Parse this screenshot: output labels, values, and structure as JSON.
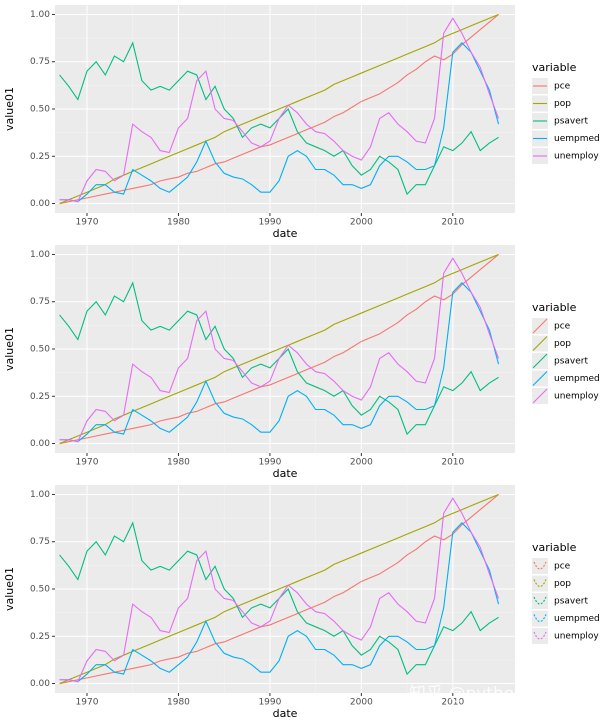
{
  "chart_data": [
    {
      "type": "line",
      "x_label": "date",
      "y_label": "value01",
      "legend_title": "variable",
      "legend_key": "line",
      "grid": true,
      "legend_position": "right",
      "xlim": [
        1966.5,
        2016.8
      ],
      "ylim": [
        -0.05,
        1.05
      ],
      "xticks": [
        1970,
        1980,
        1990,
        2000,
        2010
      ],
      "yticks": [
        {
          "value": 0,
          "label": "0.00"
        },
        {
          "value": 0.25,
          "label": "0.25"
        },
        {
          "value": 0.5,
          "label": "0.50"
        },
        {
          "value": 0.75,
          "label": "0.75"
        },
        {
          "value": 1,
          "label": "1.00"
        }
      ],
      "x": [
        1967,
        1968,
        1969,
        1970,
        1971,
        1972,
        1973,
        1974,
        1975,
        1976,
        1977,
        1978,
        1979,
        1980,
        1981,
        1982,
        1983,
        1984,
        1985,
        1986,
        1987,
        1988,
        1989,
        1990,
        1991,
        1992,
        1993,
        1994,
        1995,
        1996,
        1997,
        1998,
        1999,
        2000,
        2001,
        2002,
        2003,
        2004,
        2005,
        2006,
        2007,
        2008,
        2009,
        2010,
        2011,
        2012,
        2013,
        2014,
        2015
      ],
      "series": [
        {
          "name": "pce",
          "color": "#F8766D",
          "values": [
            0,
            0.01,
            0.02,
            0.03,
            0.04,
            0.05,
            0.06,
            0.07,
            0.08,
            0.09,
            0.1,
            0.12,
            0.13,
            0.14,
            0.16,
            0.17,
            0.19,
            0.21,
            0.22,
            0.24,
            0.26,
            0.28,
            0.3,
            0.31,
            0.33,
            0.35,
            0.37,
            0.39,
            0.41,
            0.43,
            0.46,
            0.48,
            0.51,
            0.54,
            0.56,
            0.58,
            0.61,
            0.64,
            0.68,
            0.71,
            0.75,
            0.78,
            0.76,
            0.79,
            0.84,
            0.88,
            0.92,
            0.96,
            1.0
          ]
        },
        {
          "name": "pop",
          "color": "#A3A500",
          "values": [
            0,
            0.02,
            0.04,
            0.06,
            0.08,
            0.1,
            0.13,
            0.15,
            0.17,
            0.19,
            0.21,
            0.23,
            0.25,
            0.27,
            0.29,
            0.31,
            0.33,
            0.35,
            0.38,
            0.4,
            0.42,
            0.44,
            0.46,
            0.48,
            0.5,
            0.52,
            0.54,
            0.56,
            0.58,
            0.6,
            0.63,
            0.65,
            0.67,
            0.69,
            0.71,
            0.73,
            0.75,
            0.77,
            0.79,
            0.81,
            0.83,
            0.85,
            0.88,
            0.9,
            0.92,
            0.94,
            0.96,
            0.98,
            1.0
          ]
        },
        {
          "name": "psavert",
          "color": "#00BF7D",
          "values": [
            0.68,
            0.62,
            0.55,
            0.7,
            0.75,
            0.68,
            0.78,
            0.75,
            0.85,
            0.65,
            0.6,
            0.62,
            0.6,
            0.65,
            0.7,
            0.68,
            0.55,
            0.62,
            0.5,
            0.45,
            0.35,
            0.4,
            0.42,
            0.4,
            0.45,
            0.5,
            0.38,
            0.32,
            0.3,
            0.28,
            0.25,
            0.28,
            0.2,
            0.15,
            0.18,
            0.25,
            0.22,
            0.18,
            0.05,
            0.1,
            0.1,
            0.2,
            0.3,
            0.28,
            0.32,
            0.38,
            0.28,
            0.32,
            0.35
          ]
        },
        {
          "name": "uempmed",
          "color": "#00B0F6",
          "values": [
            0.02,
            0.02,
            0.01,
            0.05,
            0.1,
            0.1,
            0.06,
            0.05,
            0.18,
            0.15,
            0.12,
            0.08,
            0.06,
            0.1,
            0.14,
            0.22,
            0.33,
            0.22,
            0.16,
            0.14,
            0.13,
            0.1,
            0.06,
            0.06,
            0.12,
            0.25,
            0.28,
            0.25,
            0.18,
            0.18,
            0.15,
            0.1,
            0.1,
            0.08,
            0.1,
            0.2,
            0.25,
            0.25,
            0.22,
            0.18,
            0.18,
            0.2,
            0.4,
            0.8,
            0.85,
            0.8,
            0.7,
            0.6,
            0.42
          ]
        },
        {
          "name": "unemploy",
          "color": "#E76BF3",
          "values": [
            0.02,
            0.02,
            0.01,
            0.12,
            0.18,
            0.17,
            0.12,
            0.15,
            0.42,
            0.38,
            0.35,
            0.28,
            0.27,
            0.4,
            0.45,
            0.65,
            0.7,
            0.5,
            0.45,
            0.44,
            0.38,
            0.32,
            0.3,
            0.33,
            0.45,
            0.52,
            0.48,
            0.42,
            0.38,
            0.37,
            0.33,
            0.28,
            0.25,
            0.23,
            0.3,
            0.45,
            0.48,
            0.42,
            0.38,
            0.33,
            0.32,
            0.45,
            0.9,
            0.98,
            0.9,
            0.8,
            0.72,
            0.58,
            0.45
          ]
        }
      ]
    },
    {
      "type": "line",
      "x_label": "date",
      "y_label": "value01",
      "legend_title": "variable",
      "legend_key": "diagonal",
      "grid": true,
      "legend_position": "right",
      "xlim": [
        1966.5,
        2016.8
      ],
      "ylim": [
        -0.05,
        1.05
      ],
      "xticks": [
        1970,
        1980,
        1990,
        2000,
        2010
      ],
      "yticks": [
        {
          "value": 0,
          "label": "0.00"
        },
        {
          "value": 0.25,
          "label": "0.25"
        },
        {
          "value": 0.5,
          "label": "0.50"
        },
        {
          "value": 0.75,
          "label": "0.75"
        },
        {
          "value": 1,
          "label": "1.00"
        }
      ],
      "x": [
        1967,
        1968,
        1969,
        1970,
        1971,
        1972,
        1973,
        1974,
        1975,
        1976,
        1977,
        1978,
        1979,
        1980,
        1981,
        1982,
        1983,
        1984,
        1985,
        1986,
        1987,
        1988,
        1989,
        1990,
        1991,
        1992,
        1993,
        1994,
        1995,
        1996,
        1997,
        1998,
        1999,
        2000,
        2001,
        2002,
        2003,
        2004,
        2005,
        2006,
        2007,
        2008,
        2009,
        2010,
        2011,
        2012,
        2013,
        2014,
        2015
      ],
      "series": [
        {
          "name": "pce",
          "color": "#F8766D",
          "values": [
            0,
            0.01,
            0.02,
            0.03,
            0.04,
            0.05,
            0.06,
            0.07,
            0.08,
            0.09,
            0.1,
            0.12,
            0.13,
            0.14,
            0.16,
            0.17,
            0.19,
            0.21,
            0.22,
            0.24,
            0.26,
            0.28,
            0.3,
            0.31,
            0.33,
            0.35,
            0.37,
            0.39,
            0.41,
            0.43,
            0.46,
            0.48,
            0.51,
            0.54,
            0.56,
            0.58,
            0.61,
            0.64,
            0.68,
            0.71,
            0.75,
            0.78,
            0.76,
            0.79,
            0.84,
            0.88,
            0.92,
            0.96,
            1.0
          ]
        },
        {
          "name": "pop",
          "color": "#A3A500",
          "values": [
            0,
            0.02,
            0.04,
            0.06,
            0.08,
            0.1,
            0.13,
            0.15,
            0.17,
            0.19,
            0.21,
            0.23,
            0.25,
            0.27,
            0.29,
            0.31,
            0.33,
            0.35,
            0.38,
            0.4,
            0.42,
            0.44,
            0.46,
            0.48,
            0.5,
            0.52,
            0.54,
            0.56,
            0.58,
            0.6,
            0.63,
            0.65,
            0.67,
            0.69,
            0.71,
            0.73,
            0.75,
            0.77,
            0.79,
            0.81,
            0.83,
            0.85,
            0.88,
            0.9,
            0.92,
            0.94,
            0.96,
            0.98,
            1.0
          ]
        },
        {
          "name": "psavert",
          "color": "#00BF7D",
          "values": [
            0.68,
            0.62,
            0.55,
            0.7,
            0.75,
            0.68,
            0.78,
            0.75,
            0.85,
            0.65,
            0.6,
            0.62,
            0.6,
            0.65,
            0.7,
            0.68,
            0.55,
            0.62,
            0.5,
            0.45,
            0.35,
            0.4,
            0.42,
            0.4,
            0.45,
            0.5,
            0.38,
            0.32,
            0.3,
            0.28,
            0.25,
            0.28,
            0.2,
            0.15,
            0.18,
            0.25,
            0.22,
            0.18,
            0.05,
            0.1,
            0.1,
            0.2,
            0.3,
            0.28,
            0.32,
            0.38,
            0.28,
            0.32,
            0.35
          ]
        },
        {
          "name": "uempmed",
          "color": "#00B0F6",
          "values": [
            0.02,
            0.02,
            0.01,
            0.05,
            0.1,
            0.1,
            0.06,
            0.05,
            0.18,
            0.15,
            0.12,
            0.08,
            0.06,
            0.1,
            0.14,
            0.22,
            0.33,
            0.22,
            0.16,
            0.14,
            0.13,
            0.1,
            0.06,
            0.06,
            0.12,
            0.25,
            0.28,
            0.25,
            0.18,
            0.18,
            0.15,
            0.1,
            0.1,
            0.08,
            0.1,
            0.2,
            0.25,
            0.25,
            0.22,
            0.18,
            0.18,
            0.2,
            0.4,
            0.8,
            0.85,
            0.8,
            0.7,
            0.6,
            0.42
          ]
        },
        {
          "name": "unemploy",
          "color": "#E76BF3",
          "values": [
            0.02,
            0.02,
            0.01,
            0.12,
            0.18,
            0.17,
            0.12,
            0.15,
            0.42,
            0.38,
            0.35,
            0.28,
            0.27,
            0.4,
            0.45,
            0.65,
            0.7,
            0.5,
            0.45,
            0.44,
            0.38,
            0.32,
            0.3,
            0.33,
            0.45,
            0.52,
            0.48,
            0.42,
            0.38,
            0.37,
            0.33,
            0.28,
            0.25,
            0.23,
            0.3,
            0.45,
            0.48,
            0.42,
            0.38,
            0.33,
            0.32,
            0.45,
            0.9,
            0.98,
            0.9,
            0.8,
            0.72,
            0.58,
            0.45
          ]
        }
      ]
    },
    {
      "type": "line",
      "x_label": "date",
      "y_label": "value01",
      "legend_title": "variable",
      "legend_key": "arc",
      "grid": true,
      "legend_position": "right",
      "xlim": [
        1966.5,
        2016.8
      ],
      "ylim": [
        -0.05,
        1.05
      ],
      "xticks": [
        1970,
        1980,
        1990,
        2000,
        2010
      ],
      "yticks": [
        {
          "value": 0,
          "label": "0.00"
        },
        {
          "value": 0.25,
          "label": "0.25"
        },
        {
          "value": 0.5,
          "label": "0.50"
        },
        {
          "value": 0.75,
          "label": "0.75"
        },
        {
          "value": 1,
          "label": "1.00"
        }
      ],
      "x": [
        1967,
        1968,
        1969,
        1970,
        1971,
        1972,
        1973,
        1974,
        1975,
        1976,
        1977,
        1978,
        1979,
        1980,
        1981,
        1982,
        1983,
        1984,
        1985,
        1986,
        1987,
        1988,
        1989,
        1990,
        1991,
        1992,
        1993,
        1994,
        1995,
        1996,
        1997,
        1998,
        1999,
        2000,
        2001,
        2002,
        2003,
        2004,
        2005,
        2006,
        2007,
        2008,
        2009,
        2010,
        2011,
        2012,
        2013,
        2014,
        2015
      ],
      "series": [
        {
          "name": "pce",
          "color": "#F8766D",
          "values": [
            0,
            0.01,
            0.02,
            0.03,
            0.04,
            0.05,
            0.06,
            0.07,
            0.08,
            0.09,
            0.1,
            0.12,
            0.13,
            0.14,
            0.16,
            0.17,
            0.19,
            0.21,
            0.22,
            0.24,
            0.26,
            0.28,
            0.3,
            0.31,
            0.33,
            0.35,
            0.37,
            0.39,
            0.41,
            0.43,
            0.46,
            0.48,
            0.51,
            0.54,
            0.56,
            0.58,
            0.61,
            0.64,
            0.68,
            0.71,
            0.75,
            0.78,
            0.76,
            0.79,
            0.84,
            0.88,
            0.92,
            0.96,
            1.0
          ]
        },
        {
          "name": "pop",
          "color": "#A3A500",
          "values": [
            0,
            0.02,
            0.04,
            0.06,
            0.08,
            0.1,
            0.13,
            0.15,
            0.17,
            0.19,
            0.21,
            0.23,
            0.25,
            0.27,
            0.29,
            0.31,
            0.33,
            0.35,
            0.38,
            0.4,
            0.42,
            0.44,
            0.46,
            0.48,
            0.5,
            0.52,
            0.54,
            0.56,
            0.58,
            0.6,
            0.63,
            0.65,
            0.67,
            0.69,
            0.71,
            0.73,
            0.75,
            0.77,
            0.79,
            0.81,
            0.83,
            0.85,
            0.88,
            0.9,
            0.92,
            0.94,
            0.96,
            0.98,
            1.0
          ]
        },
        {
          "name": "psavert",
          "color": "#00BF7D",
          "values": [
            0.68,
            0.62,
            0.55,
            0.7,
            0.75,
            0.68,
            0.78,
            0.75,
            0.85,
            0.65,
            0.6,
            0.62,
            0.6,
            0.65,
            0.7,
            0.68,
            0.55,
            0.62,
            0.5,
            0.45,
            0.35,
            0.4,
            0.42,
            0.4,
            0.45,
            0.5,
            0.38,
            0.32,
            0.3,
            0.28,
            0.25,
            0.28,
            0.2,
            0.15,
            0.18,
            0.25,
            0.22,
            0.18,
            0.05,
            0.1,
            0.1,
            0.2,
            0.3,
            0.28,
            0.32,
            0.38,
            0.28,
            0.32,
            0.35
          ]
        },
        {
          "name": "uempmed",
          "color": "#00B0F6",
          "values": [
            0.02,
            0.02,
            0.01,
            0.05,
            0.1,
            0.1,
            0.06,
            0.05,
            0.18,
            0.15,
            0.12,
            0.08,
            0.06,
            0.1,
            0.14,
            0.22,
            0.33,
            0.22,
            0.16,
            0.14,
            0.13,
            0.1,
            0.06,
            0.06,
            0.12,
            0.25,
            0.28,
            0.25,
            0.18,
            0.18,
            0.15,
            0.1,
            0.1,
            0.08,
            0.1,
            0.2,
            0.25,
            0.25,
            0.22,
            0.18,
            0.18,
            0.2,
            0.4,
            0.8,
            0.85,
            0.8,
            0.7,
            0.6,
            0.42
          ]
        },
        {
          "name": "unemploy",
          "color": "#E76BF3",
          "values": [
            0.02,
            0.02,
            0.01,
            0.12,
            0.18,
            0.17,
            0.12,
            0.15,
            0.42,
            0.38,
            0.35,
            0.28,
            0.27,
            0.4,
            0.45,
            0.65,
            0.7,
            0.5,
            0.45,
            0.44,
            0.38,
            0.32,
            0.3,
            0.33,
            0.45,
            0.52,
            0.48,
            0.42,
            0.38,
            0.37,
            0.33,
            0.28,
            0.25,
            0.23,
            0.3,
            0.45,
            0.48,
            0.42,
            0.38,
            0.33,
            0.32,
            0.45,
            0.9,
            0.98,
            0.9,
            0.8,
            0.72,
            0.58,
            0.45
          ]
        }
      ]
    }
  ],
  "watermark": "知乎 @pythonic生物人"
}
